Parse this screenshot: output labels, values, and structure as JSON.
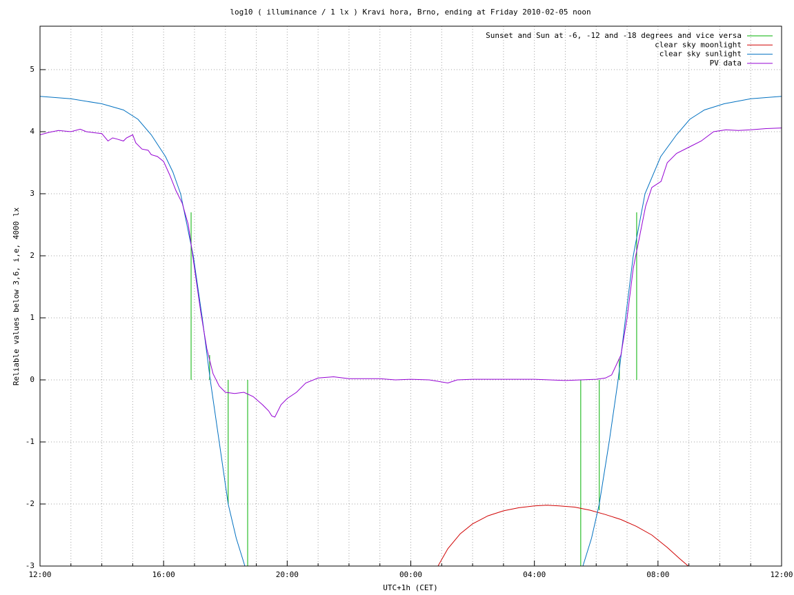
{
  "chart_data": {
    "type": "line",
    "title": "log10 ( illuminance / 1 lx ) Kravi hora, Brno, ending at Friday 2010-02-05 noon",
    "xlabel": "UTC+1h (CET)",
    "ylabel": "Reliable values below 3,6, i,e, 4000 lx",
    "xlim": [
      0,
      24
    ],
    "ylim": [
      -3,
      5.7
    ],
    "xticks": [
      {
        "value": 0,
        "label": "12:00"
      },
      {
        "value": 4,
        "label": "16:00"
      },
      {
        "value": 8,
        "label": "20:00"
      },
      {
        "value": 12,
        "label": "00:00"
      },
      {
        "value": 16,
        "label": "04:00"
      },
      {
        "value": 20,
        "label": "08:00"
      },
      {
        "value": 24,
        "label": "12:00"
      }
    ],
    "xminorticks": [
      1,
      2,
      3,
      5,
      6,
      7,
      9,
      10,
      11,
      13,
      14,
      15,
      17,
      18,
      19,
      21,
      22,
      23
    ],
    "yticks": [
      -3,
      -2,
      -1,
      0,
      1,
      2,
      3,
      4,
      5
    ],
    "grid": true,
    "legend": "top-right",
    "series": [
      {
        "name": "Sunset and Sun at -6, -12 and -18 degrees and vice versa",
        "color": "#00b000",
        "style": "impulses",
        "x": [
          4.89,
          5.49,
          6.09,
          6.72,
          17.5,
          18.1,
          18.75,
          19.31
        ],
        "values": [
          2.7,
          0.4,
          -2.0,
          -3.0,
          -3.0,
          -2.1,
          0.35,
          2.7
        ]
      },
      {
        "name": "clear sky moonlight",
        "color": "#d00000",
        "style": "line",
        "x": [
          12.88,
          13.2,
          13.6,
          14.0,
          14.5,
          15.0,
          15.5,
          16.0,
          16.4,
          16.8,
          17.3,
          17.8,
          18.3,
          18.8,
          19.3,
          19.8,
          20.3,
          20.7,
          20.98
        ],
        "values": [
          -3.0,
          -2.72,
          -2.48,
          -2.32,
          -2.19,
          -2.11,
          -2.06,
          -2.03,
          -2.02,
          -2.03,
          -2.05,
          -2.1,
          -2.17,
          -2.25,
          -2.36,
          -2.5,
          -2.7,
          -2.88,
          -3.0
        ]
      },
      {
        "name": "clear sky sunlight",
        "color": "#0070c0",
        "style": "line",
        "x": [
          0,
          1,
          2,
          2.7,
          3.17,
          3.6,
          4.06,
          4.3,
          4.55,
          4.96,
          5.25,
          5.51,
          5.8,
          6.09,
          6.35,
          6.63,
          17.57,
          17.85,
          18.1,
          18.42,
          18.71,
          18.95,
          19.2,
          19.58,
          20.09,
          20.6,
          21.03,
          21.5,
          22.14,
          23,
          24
        ],
        "values": [
          4.57,
          4.53,
          4.45,
          4.35,
          4.2,
          3.95,
          3.6,
          3.35,
          3.0,
          2.0,
          1.0,
          0.0,
          -1.0,
          -2.0,
          -2.55,
          -3.0,
          -3.0,
          -2.55,
          -2.0,
          -1.0,
          0.0,
          1.0,
          2.0,
          3.0,
          3.6,
          3.95,
          4.2,
          4.35,
          4.45,
          4.53,
          4.57
        ]
      },
      {
        "name": "PV data",
        "color": "#9400d3",
        "style": "line",
        "x": [
          0,
          0.3,
          0.6,
          1,
          1.3,
          1.5,
          1.8,
          2,
          2.2,
          2.35,
          2.5,
          2.7,
          2.8,
          3.0,
          3.1,
          3.3,
          3.5,
          3.6,
          3.8,
          4.0,
          4.2,
          4.4,
          4.6,
          4.8,
          5.0,
          5.2,
          5.4,
          5.6,
          5.8,
          6.0,
          6.3,
          6.6,
          6.9,
          7.2,
          7.4,
          7.5,
          7.6,
          7.8,
          8.0,
          8.3,
          8.6,
          9.0,
          9.5,
          10,
          10.5,
          11,
          11.5,
          12,
          12.6,
          13.2,
          13.5,
          14,
          15,
          16,
          17,
          17.5,
          18,
          18.3,
          18.5,
          18.8,
          19.0,
          19.2,
          19.4,
          19.6,
          19.8,
          20.1,
          20.3,
          20.6,
          21.0,
          21.4,
          21.8,
          22.2,
          22.6,
          23,
          23.5,
          24
        ],
        "values": [
          3.95,
          3.99,
          4.02,
          4.0,
          4.04,
          4.0,
          3.98,
          3.97,
          3.85,
          3.9,
          3.88,
          3.85,
          3.9,
          3.95,
          3.82,
          3.72,
          3.7,
          3.63,
          3.6,
          3.52,
          3.3,
          3.05,
          2.85,
          2.5,
          1.8,
          1.1,
          0.5,
          0.1,
          -0.1,
          -0.2,
          -0.22,
          -0.2,
          -0.27,
          -0.4,
          -0.5,
          -0.58,
          -0.6,
          -0.4,
          -0.3,
          -0.2,
          -0.05,
          0.03,
          0.05,
          0.02,
          0.02,
          0.02,
          0.0,
          0.01,
          0.0,
          -0.05,
          0.0,
          0.01,
          0.01,
          0.01,
          -0.01,
          0.0,
          0.01,
          0.03,
          0.08,
          0.4,
          1.0,
          1.8,
          2.3,
          2.8,
          3.1,
          3.2,
          3.5,
          3.65,
          3.75,
          3.85,
          4.0,
          4.03,
          4.02,
          4.03,
          4.05,
          4.06
        ]
      }
    ]
  }
}
